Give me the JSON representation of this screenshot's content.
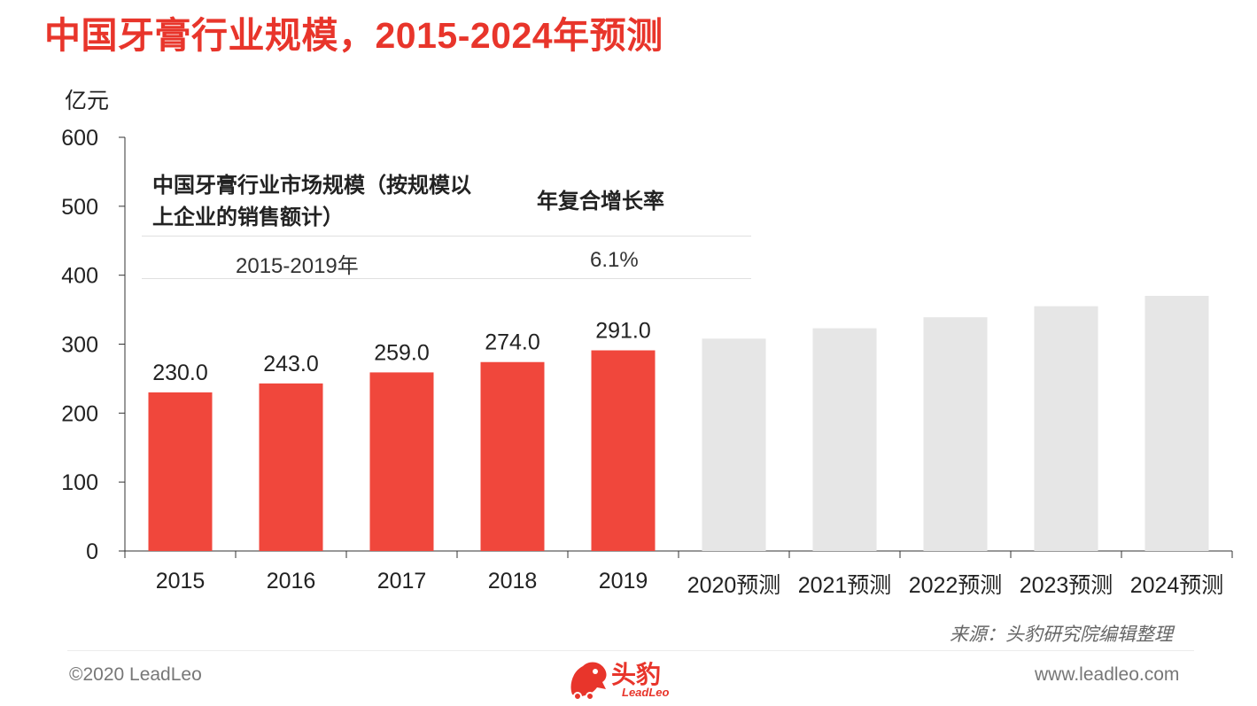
{
  "title": "中国牙膏行业规模，2015-2024年预测",
  "colors": {
    "accent": "#e8352b",
    "bar_actual": "#f0473c",
    "bar_forecast": "#e6e6e6"
  },
  "legend_table": {
    "header_metric": "中国牙膏行业市场规模（按规模以上企业的销售额计）",
    "header_cagr": "年复合增长率",
    "period": "2015-2019年",
    "cagr": "6.1%"
  },
  "chart_data": {
    "type": "bar",
    "ylabel": "亿元",
    "ylim": [
      0,
      600
    ],
    "yticks": [
      "0",
      "100",
      "200",
      "300",
      "400",
      "500",
      "600"
    ],
    "categories": [
      "2015",
      "2016",
      "2017",
      "2018",
      "2019",
      "2020预测",
      "2021预测",
      "2022预测",
      "2023预测",
      "2024预测"
    ],
    "values": [
      230.0,
      243.0,
      259.0,
      274.0,
      291.0,
      308,
      323,
      339,
      355,
      370
    ],
    "data_labels": [
      "230.0",
      "243.0",
      "259.0",
      "274.0",
      "291.0",
      "",
      "",
      "",
      "",
      ""
    ],
    "forecast_from_index": 5,
    "grid": false
  },
  "source": "来源：头豹研究院编辑整理",
  "footer": {
    "copyright": "©2020 LeadLeo",
    "website": "www.leadleo.com"
  },
  "logo": {
    "name": "头豹",
    "sub": "LeadLeo",
    "icon": "leopard-icon"
  }
}
